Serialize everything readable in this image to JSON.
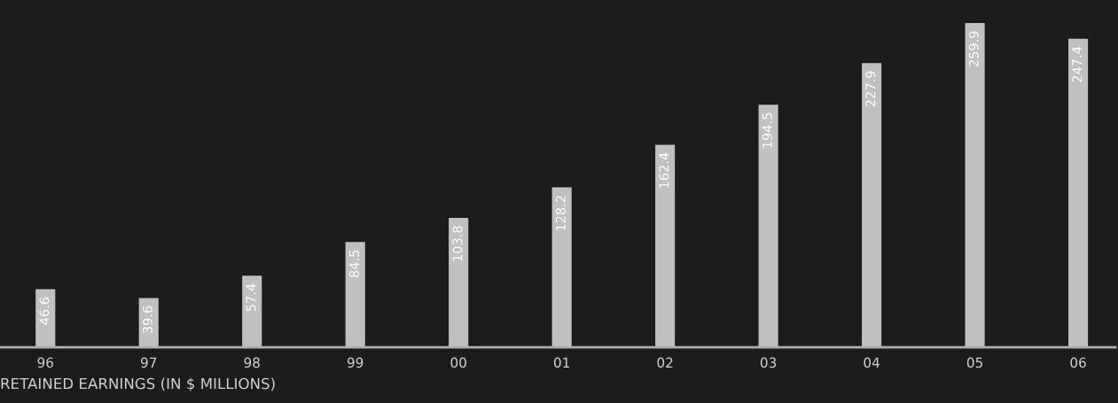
{
  "chart_data": {
    "type": "bar",
    "xlabel": "RETAINED EARNINGS (IN $ MILLIONS)",
    "categories": [
      "96",
      "97",
      "98",
      "99",
      "00",
      "01",
      "02",
      "03",
      "04",
      "05",
      "06"
    ],
    "values": [
      46.6,
      39.6,
      57.4,
      84.5,
      103.8,
      128.2,
      162.4,
      194.5,
      227.9,
      259.9,
      247.4
    ],
    "color": "#c0c0c0",
    "data_labels": true,
    "grid": false,
    "legend": false,
    "tick_labels": "x"
  }
}
